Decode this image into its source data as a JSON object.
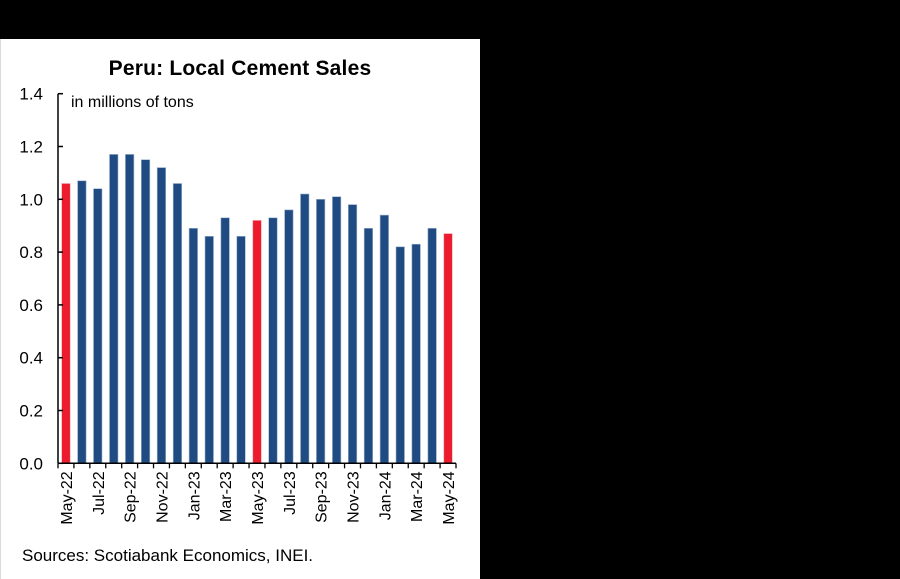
{
  "chart_data": {
    "type": "bar",
    "title": "Peru: Local Cement Sales",
    "subtitle": "in millions of tons",
    "xlabel": "",
    "ylabel": "in millions of tons",
    "ylim": [
      0,
      1.4
    ],
    "yticks": [
      "0.0",
      "0.2",
      "0.4",
      "0.6",
      "0.8",
      "1.0",
      "1.2",
      "1.4"
    ],
    "grid": false,
    "legend": null,
    "categories": [
      "May-22",
      "Jun-22",
      "Jul-22",
      "Aug-22",
      "Sep-22",
      "Oct-22",
      "Nov-22",
      "Dec-22",
      "Jan-23",
      "Feb-23",
      "Mar-23",
      "Apr-23",
      "May-23",
      "Jun-23",
      "Jul-23",
      "Aug-23",
      "Sep-23",
      "Oct-23",
      "Nov-23",
      "Dec-23",
      "Jan-24",
      "Feb-24",
      "Mar-24",
      "Apr-24",
      "May-24"
    ],
    "x_tick_labels": [
      "May-22",
      "Jul-22",
      "Sep-22",
      "Nov-22",
      "Jan-23",
      "Mar-23",
      "May-23",
      "Jul-23",
      "Sep-23",
      "Nov-23",
      "Jan-24",
      "Mar-24",
      "May-24"
    ],
    "values": [
      1.06,
      1.07,
      1.04,
      1.17,
      1.17,
      1.15,
      1.12,
      1.06,
      0.89,
      0.86,
      0.93,
      0.86,
      0.92,
      0.93,
      0.96,
      1.02,
      1.0,
      1.01,
      0.98,
      0.89,
      0.94,
      0.82,
      0.83,
      0.89,
      0.87
    ],
    "highlighted": [
      "May-22",
      "May-23",
      "May-24"
    ],
    "colors": {
      "default": "#1F4B82",
      "highlight": "#EC1C2E"
    },
    "source": "Sources: Scotiabank Economics, INEI."
  }
}
